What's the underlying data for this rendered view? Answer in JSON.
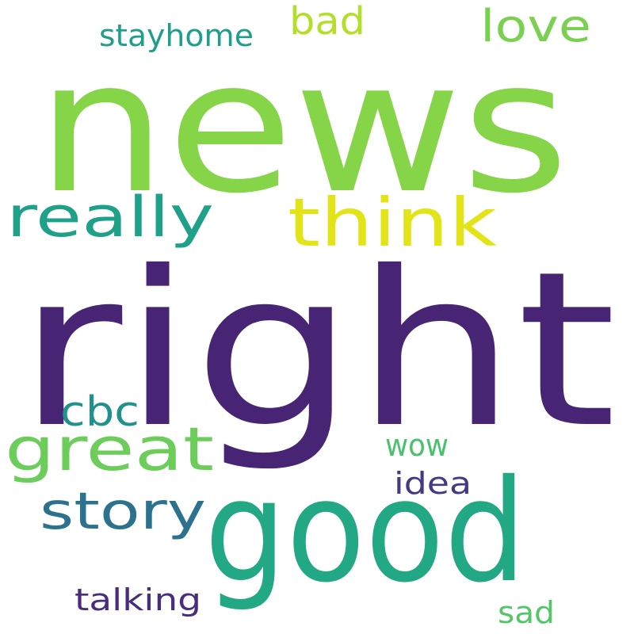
{
  "words": [
    {
      "text": "news",
      "color": "#86d549"
    },
    {
      "text": "right",
      "color": "#482475"
    },
    {
      "text": "good",
      "color": "#22a884"
    },
    {
      "text": "think",
      "color": "#e2e418"
    },
    {
      "text": "really",
      "color": "#1fa088"
    },
    {
      "text": "great",
      "color": "#6ccd5a"
    },
    {
      "text": "story",
      "color": "#2c728e"
    },
    {
      "text": "cbc",
      "color": "#21918c"
    },
    {
      "text": "love",
      "color": "#7ad151"
    },
    {
      "text": "bad",
      "color": "#b5de2b"
    },
    {
      "text": "stayhome",
      "color": "#1f9e89"
    },
    {
      "text": "wow",
      "color": "#4ac16d"
    },
    {
      "text": "idea",
      "color": "#443983"
    },
    {
      "text": "talking",
      "color": "#472d7b"
    },
    {
      "text": "sad",
      "color": "#54c568"
    }
  ]
}
